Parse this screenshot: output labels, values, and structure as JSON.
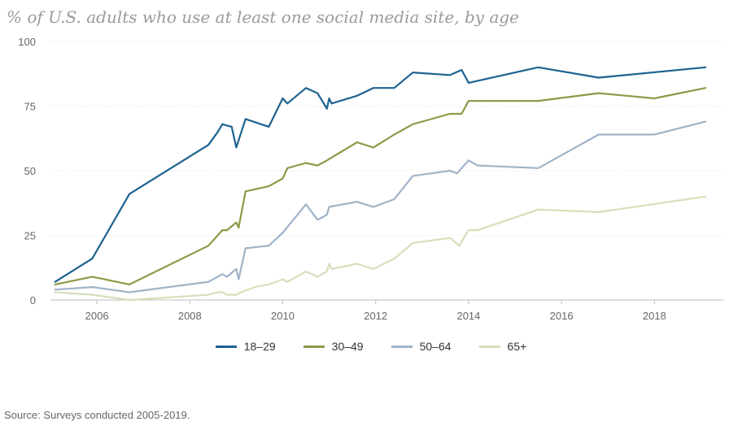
{
  "chart_data": {
    "type": "line",
    "title": "% of U.S. adults who use at least one social media site, by age",
    "xlabel": "",
    "ylabel": "",
    "xlim": [
      2005.0,
      2019.5
    ],
    "ylim": [
      0,
      100
    ],
    "y_ticks": [
      0,
      25,
      50,
      75,
      100
    ],
    "x_ticks": [
      2006,
      2008,
      2010,
      2012,
      2014,
      2016,
      2018
    ],
    "series": [
      {
        "name": "18–29",
        "color": "#1d6290",
        "points": [
          [
            2005.1,
            7
          ],
          [
            2005.9,
            16
          ],
          [
            2006.7,
            41
          ],
          [
            2008.4,
            60
          ],
          [
            2008.6,
            65
          ],
          [
            2008.7,
            68
          ],
          [
            2008.9,
            67
          ],
          [
            2009.0,
            59
          ],
          [
            2009.2,
            70
          ],
          [
            2009.7,
            67
          ],
          [
            2010.0,
            78
          ],
          [
            2010.1,
            76
          ],
          [
            2010.5,
            82
          ],
          [
            2010.75,
            80
          ],
          [
            2010.95,
            74
          ],
          [
            2011.0,
            78
          ],
          [
            2011.05,
            76
          ],
          [
            2011.6,
            79
          ],
          [
            2011.95,
            82
          ],
          [
            2012.4,
            82
          ],
          [
            2012.8,
            88
          ],
          [
            2013.6,
            87
          ],
          [
            2013.85,
            89
          ],
          [
            2014.0,
            84
          ],
          [
            2015.5,
            90
          ],
          [
            2016.8,
            86
          ],
          [
            2019.1,
            90
          ]
        ]
      },
      {
        "name": "30–49",
        "color": "#8b9a47",
        "points": [
          [
            2005.1,
            6
          ],
          [
            2005.9,
            9
          ],
          [
            2006.7,
            6
          ],
          [
            2008.4,
            21
          ],
          [
            2008.6,
            25
          ],
          [
            2008.7,
            27
          ],
          [
            2008.8,
            27
          ],
          [
            2009.0,
            30
          ],
          [
            2009.05,
            28
          ],
          [
            2009.2,
            42
          ],
          [
            2009.7,
            44
          ],
          [
            2010.0,
            47
          ],
          [
            2010.1,
            51
          ],
          [
            2010.5,
            53
          ],
          [
            2010.75,
            52
          ],
          [
            2010.95,
            54
          ],
          [
            2011.6,
            61
          ],
          [
            2011.95,
            59
          ],
          [
            2012.4,
            64
          ],
          [
            2012.8,
            68
          ],
          [
            2013.6,
            72
          ],
          [
            2013.85,
            72
          ],
          [
            2014.0,
            77
          ],
          [
            2015.5,
            77
          ],
          [
            2016.8,
            80
          ],
          [
            2018.0,
            78
          ],
          [
            2019.1,
            82
          ]
        ]
      },
      {
        "name": "50–64",
        "color": "#a0b4c8",
        "points": [
          [
            2005.1,
            4
          ],
          [
            2005.9,
            5
          ],
          [
            2006.7,
            3
          ],
          [
            2008.4,
            7
          ],
          [
            2008.6,
            9
          ],
          [
            2008.7,
            10
          ],
          [
            2008.8,
            9
          ],
          [
            2009.0,
            12
          ],
          [
            2009.05,
            8
          ],
          [
            2009.2,
            20
          ],
          [
            2009.7,
            21
          ],
          [
            2010.0,
            26
          ],
          [
            2010.5,
            37
          ],
          [
            2010.75,
            31
          ],
          [
            2010.95,
            33
          ],
          [
            2011.0,
            36
          ],
          [
            2011.6,
            38
          ],
          [
            2011.95,
            36
          ],
          [
            2012.4,
            39
          ],
          [
            2012.8,
            48
          ],
          [
            2013.6,
            50
          ],
          [
            2013.75,
            49
          ],
          [
            2014.0,
            54
          ],
          [
            2014.2,
            52
          ],
          [
            2015.5,
            51
          ],
          [
            2016.8,
            64
          ],
          [
            2018.0,
            64
          ],
          [
            2019.1,
            69
          ]
        ]
      },
      {
        "name": "65+",
        "color": "#d5dfbb",
        "points": [
          [
            2005.1,
            3
          ],
          [
            2005.9,
            2
          ],
          [
            2006.7,
            0
          ],
          [
            2008.4,
            2
          ],
          [
            2008.6,
            3
          ],
          [
            2008.7,
            3
          ],
          [
            2008.8,
            2
          ],
          [
            2009.0,
            2
          ],
          [
            2009.1,
            3
          ],
          [
            2009.4,
            5
          ],
          [
            2009.7,
            6
          ],
          [
            2010.0,
            8
          ],
          [
            2010.1,
            7
          ],
          [
            2010.5,
            11
          ],
          [
            2010.75,
            9
          ],
          [
            2010.95,
            11
          ],
          [
            2011.0,
            14
          ],
          [
            2011.05,
            12
          ],
          [
            2011.6,
            14
          ],
          [
            2011.95,
            12
          ],
          [
            2012.4,
            16
          ],
          [
            2012.8,
            22
          ],
          [
            2013.6,
            24
          ],
          [
            2013.8,
            21
          ],
          [
            2014.0,
            27
          ],
          [
            2014.2,
            27
          ],
          [
            2015.5,
            35
          ],
          [
            2016.8,
            34
          ],
          [
            2019.1,
            40
          ]
        ]
      }
    ]
  },
  "source_text": "Source: Surveys conducted 2005-2019."
}
